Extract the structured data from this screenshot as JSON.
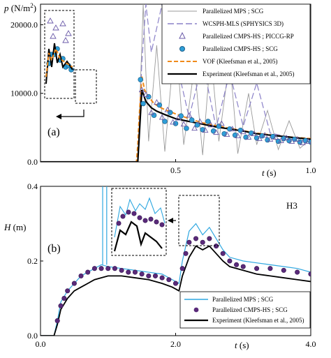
{
  "chart_data": [
    {
      "type": "line",
      "panel_label": "(a)",
      "ylabel": "p (N/m²)",
      "xlabel": "t (s)",
      "xlim": [
        0.0,
        1.0
      ],
      "ylim": [
        0,
        23000
      ],
      "x_ticks": [
        {
          "v": 0.5,
          "label": "0.5"
        },
        {
          "v": 1.0,
          "label": "1.0"
        }
      ],
      "y_ticks": [
        {
          "v": 0,
          "label": "0.0"
        },
        {
          "v": 10000,
          "label": "10000.0"
        },
        {
          "v": 20000,
          "label": "20000.0"
        }
      ],
      "grid": false,
      "legend_position": "top-right",
      "legend": [
        {
          "label": "Parallelized MPS ; SCG",
          "style": "thin-line",
          "color": "#9a9a9a"
        },
        {
          "label": "WCSPH-MLS (SPHYSICS 3D)",
          "style": "long-dash",
          "color": "#8a80c8"
        },
        {
          "label": "Parallelized CMPS-HS ; PICCG-RP",
          "style": "open-triangle",
          "color": "#6a5aa8"
        },
        {
          "label": "Parallelized CMPS-HS ; SCG",
          "style": "filled-circle",
          "color": "#2e9fd8"
        },
        {
          "label": "VOF (Kleefsman et al., 2005)",
          "style": "orange-dash",
          "color": "#f08a1a"
        },
        {
          "label": "Experiment (Kleefsman et al., 2005)",
          "style": "thick-line",
          "color": "#000000"
        }
      ],
      "series": [
        {
          "name": "Experiment (Kleefsman et al., 2005)",
          "x": [
            0.0,
            0.36,
            0.375,
            0.39,
            0.41,
            0.43,
            0.46,
            0.5,
            0.55,
            0.6,
            0.65,
            0.7,
            0.75,
            0.8,
            0.85,
            0.9,
            0.95,
            1.0
          ],
          "y": [
            0,
            0,
            10500,
            8800,
            7900,
            7400,
            6900,
            6300,
            5900,
            5500,
            5100,
            4800,
            4500,
            4100,
            3900,
            3700,
            3500,
            3300
          ]
        },
        {
          "name": "VOF (Kleefsman et al., 2005)",
          "x": [
            0.0,
            0.355,
            0.36,
            0.365,
            0.375,
            0.385,
            0.4,
            0.42,
            0.45,
            0.5,
            0.55,
            0.6,
            0.7,
            0.8,
            0.9,
            1.0
          ],
          "y": [
            0,
            0,
            2500,
            6500,
            12500,
            10500,
            9500,
            8500,
            7800,
            7000,
            6300,
            5700,
            4900,
            4200,
            3700,
            3400
          ]
        },
        {
          "name": "WCSPH-MLS (SPHYSICS 3D)",
          "x": [
            0.36,
            0.375,
            0.39,
            0.41,
            0.45,
            0.5,
            0.55,
            0.6,
            0.65,
            0.7,
            0.75,
            0.8,
            0.85,
            0.9,
            0.95,
            1.0
          ],
          "y": [
            0,
            14500,
            23000,
            16000,
            23000,
            15000,
            6500,
            14500,
            5000,
            13000,
            5200,
            11500,
            4200,
            3800,
            3500,
            3200
          ]
        },
        {
          "name": "Parallelized MPS ; SCG",
          "x": [
            0.36,
            0.38,
            0.4,
            0.43,
            0.46,
            0.5,
            0.53,
            0.57,
            0.6,
            0.63,
            0.66,
            0.7,
            0.73,
            0.77,
            0.8,
            0.84,
            0.88,
            0.92,
            0.96,
            1.0
          ],
          "y": [
            0,
            23000,
            3000,
            17000,
            1500,
            19000,
            2500,
            14000,
            1000,
            16000,
            3000,
            15000,
            1200,
            10000,
            2500,
            7500,
            1800,
            6000,
            2000,
            3300
          ]
        }
      ],
      "markers": [
        {
          "name": "Parallelized CMPS-HS ; SCG",
          "x": [
            0.37,
            0.38,
            0.4,
            0.42,
            0.44,
            0.46,
            0.48,
            0.5,
            0.52,
            0.54,
            0.56,
            0.58,
            0.6,
            0.62,
            0.64,
            0.66,
            0.68,
            0.7,
            0.72,
            0.74,
            0.76,
            0.78,
            0.8,
            0.82,
            0.84,
            0.86,
            0.88,
            0.9,
            0.92,
            0.94,
            0.96,
            0.98,
            1.0
          ],
          "y": [
            12000,
            8500,
            9500,
            6800,
            8300,
            5900,
            7200,
            5600,
            6700,
            4900,
            6100,
            5400,
            4700,
            5900,
            4500,
            5200,
            4100,
            4800,
            3900,
            4600,
            3600,
            4200,
            3500,
            3800,
            3200,
            3700,
            3000,
            3400,
            3100,
            3300,
            2900,
            3100,
            2900
          ]
        },
        {
          "name": "Parallelized CMPS-HS ; PICCG-RP",
          "x": [
            0.375,
            0.39,
            0.41,
            0.43,
            0.45,
            0.47,
            0.49,
            0.51,
            0.53,
            0.55,
            0.57,
            0.59,
            0.61,
            0.63,
            0.65,
            0.67,
            0.69,
            0.71,
            0.73,
            0.75,
            0.77,
            0.79,
            0.81,
            0.83,
            0.85,
            0.87,
            0.89,
            0.91,
            0.93,
            0.95,
            0.97,
            0.99
          ],
          "y": [
            10500,
            9800,
            7200,
            8700,
            6500,
            7600,
            5800,
            6400,
            5500,
            6800,
            4900,
            5900,
            4600,
            5400,
            4300,
            5600,
            4000,
            4800,
            3800,
            4400,
            3600,
            4100,
            3400,
            3900,
            3300,
            3600,
            3100,
            3500,
            3000,
            3300,
            2800,
            3000
          ]
        }
      ]
    },
    {
      "type": "line",
      "panel_label": "(b)",
      "annotation": "H3",
      "ylabel": "H (m)",
      "xlabel": "t (s)",
      "xlim": [
        0.0,
        4.0
      ],
      "ylim": [
        0.0,
        0.4
      ],
      "x_ticks": [
        {
          "v": 0.0,
          "label": "0.0"
        },
        {
          "v": 2.0,
          "label": "2.0"
        },
        {
          "v": 4.0,
          "label": "4.0"
        }
      ],
      "y_ticks": [
        {
          "v": 0.0,
          "label": "0.0"
        },
        {
          "v": 0.2,
          "label": "0.2"
        },
        {
          "v": 0.4,
          "label": "0.4"
        }
      ],
      "grid": false,
      "legend_position": "bottom-right",
      "legend": [
        {
          "label": "Parallelized MPS ; SCG",
          "style": "line",
          "color": "#2ea7e0"
        },
        {
          "label": "Parallelized CMPS-HS ; SCG",
          "style": "filled-circle",
          "color": "#5a2a7a"
        },
        {
          "label": "Experiment (Kleefsman et al., 2005)",
          "style": "thick-line",
          "color": "#000000"
        }
      ],
      "series": [
        {
          "name": "Experiment (Kleefsman et al., 2005)",
          "x": [
            0.0,
            0.2,
            0.25,
            0.3,
            0.4,
            0.5,
            0.6,
            0.8,
            1.0,
            1.2,
            1.4,
            1.6,
            1.8,
            1.95,
            2.05,
            2.1,
            2.2,
            2.3,
            2.4,
            2.5,
            2.6,
            2.7,
            2.8,
            3.0,
            3.2,
            3.4,
            3.6,
            3.8,
            4.0
          ],
          "y": [
            0.0,
            0.0,
            0.03,
            0.07,
            0.1,
            0.12,
            0.13,
            0.15,
            0.16,
            0.16,
            0.155,
            0.15,
            0.14,
            0.13,
            0.12,
            0.16,
            0.21,
            0.24,
            0.23,
            0.24,
            0.22,
            0.2,
            0.185,
            0.175,
            0.165,
            0.16,
            0.155,
            0.15,
            0.145
          ]
        },
        {
          "name": "Parallelized MPS ; SCG",
          "x": [
            0.0,
            0.2,
            0.25,
            0.3,
            0.4,
            0.5,
            0.6,
            0.7,
            0.8,
            0.9,
            1.0,
            1.2,
            1.4,
            1.6,
            1.8,
            1.95,
            2.05,
            2.1,
            2.2,
            2.3,
            2.4,
            2.5,
            2.6,
            2.7,
            2.8,
            3.0,
            3.2,
            3.4,
            3.6,
            3.8,
            4.0
          ],
          "y": [
            0.0,
            0.0,
            0.04,
            0.09,
            0.12,
            0.14,
            0.16,
            0.17,
            0.18,
            0.19,
            0.185,
            0.18,
            0.175,
            0.17,
            0.165,
            0.15,
            0.14,
            0.2,
            0.28,
            0.3,
            0.27,
            0.29,
            0.26,
            0.23,
            0.21,
            0.2,
            0.195,
            0.19,
            0.185,
            0.18,
            0.17
          ]
        }
      ],
      "markers": [
        {
          "name": "Parallelized CMPS-HS ; SCG",
          "x": [
            0.25,
            0.3,
            0.35,
            0.4,
            0.5,
            0.6,
            0.7,
            0.8,
            0.9,
            1.0,
            1.1,
            1.2,
            1.3,
            1.4,
            1.5,
            1.6,
            1.7,
            1.8,
            1.9,
            2.0,
            2.1,
            2.15,
            2.2,
            2.3,
            2.4,
            2.5,
            2.6,
            2.7,
            2.8,
            2.9,
            3.0,
            3.2,
            3.4,
            3.6,
            3.8,
            4.0
          ],
          "y": [
            0.04,
            0.08,
            0.1,
            0.12,
            0.14,
            0.16,
            0.17,
            0.18,
            0.18,
            0.18,
            0.18,
            0.175,
            0.17,
            0.17,
            0.165,
            0.16,
            0.16,
            0.155,
            0.15,
            0.14,
            0.18,
            0.22,
            0.25,
            0.26,
            0.25,
            0.26,
            0.24,
            0.22,
            0.2,
            0.19,
            0.185,
            0.18,
            0.18,
            0.175,
            0.17,
            0.165
          ]
        }
      ]
    }
  ]
}
